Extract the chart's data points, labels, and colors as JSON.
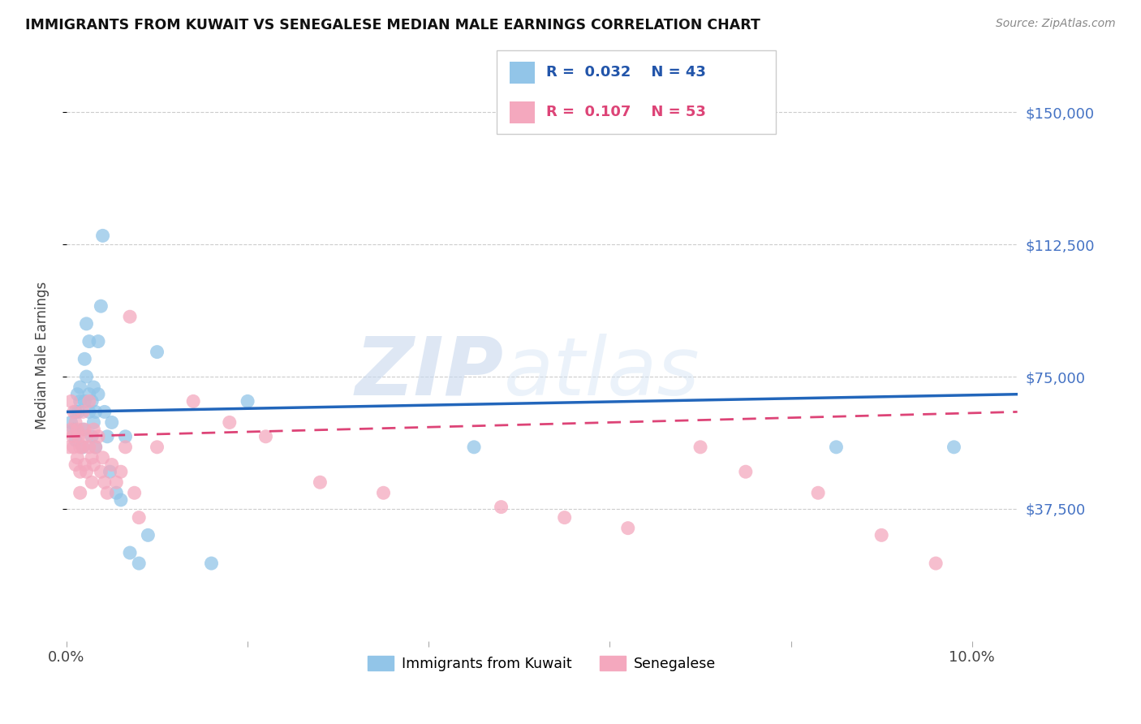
{
  "title": "IMMIGRANTS FROM KUWAIT VS SENEGALESE MEDIAN MALE EARNINGS CORRELATION CHART",
  "source": "Source: ZipAtlas.com",
  "ylabel": "Median Male Earnings",
  "ytick_labels": [
    "$37,500",
    "$75,000",
    "$112,500",
    "$150,000"
  ],
  "ytick_values": [
    37500,
    75000,
    112500,
    150000
  ],
  "ymin": 0,
  "ymax": 162000,
  "xmin": 0.0,
  "xmax": 0.105,
  "legend_label1": "Immigrants from Kuwait",
  "legend_label2": "Senegalese",
  "color_blue": "#92c5e8",
  "color_pink": "#f4a8be",
  "color_blue_line": "#2266bb",
  "color_pink_line": "#dd4477",
  "watermark_zip": "ZIP",
  "watermark_atlas": "atlas",
  "background_color": "#ffffff",
  "kuwait_x": [
    0.0005,
    0.0008,
    0.001,
    0.001,
    0.0012,
    0.0013,
    0.0015,
    0.0015,
    0.0018,
    0.0018,
    0.002,
    0.002,
    0.0022,
    0.0022,
    0.0025,
    0.0025,
    0.0025,
    0.0028,
    0.0028,
    0.003,
    0.003,
    0.0032,
    0.0032,
    0.0035,
    0.0035,
    0.0038,
    0.004,
    0.0042,
    0.0045,
    0.0048,
    0.005,
    0.0055,
    0.006,
    0.0065,
    0.007,
    0.008,
    0.009,
    0.01,
    0.016,
    0.02,
    0.045,
    0.085,
    0.098
  ],
  "kuwait_y": [
    62000,
    60000,
    65000,
    57000,
    70000,
    65000,
    68000,
    72000,
    60000,
    55000,
    80000,
    68000,
    90000,
    75000,
    85000,
    70000,
    65000,
    68000,
    58000,
    72000,
    62000,
    65000,
    55000,
    70000,
    85000,
    95000,
    115000,
    65000,
    58000,
    48000,
    62000,
    42000,
    40000,
    58000,
    25000,
    22000,
    30000,
    82000,
    22000,
    68000,
    55000,
    55000,
    55000
  ],
  "senegal_x": [
    0.0003,
    0.0005,
    0.0005,
    0.0007,
    0.0008,
    0.0008,
    0.001,
    0.001,
    0.0012,
    0.0012,
    0.0013,
    0.0015,
    0.0015,
    0.0015,
    0.0018,
    0.0018,
    0.002,
    0.002,
    0.0022,
    0.0022,
    0.0025,
    0.0025,
    0.0028,
    0.0028,
    0.003,
    0.003,
    0.0032,
    0.0035,
    0.0038,
    0.004,
    0.0042,
    0.0045,
    0.005,
    0.0055,
    0.006,
    0.0065,
    0.007,
    0.0075,
    0.008,
    0.01,
    0.014,
    0.018,
    0.022,
    0.028,
    0.035,
    0.048,
    0.055,
    0.062,
    0.07,
    0.075,
    0.083,
    0.09,
    0.096
  ],
  "senegal_y": [
    55000,
    68000,
    60000,
    58000,
    65000,
    55000,
    62000,
    50000,
    60000,
    52000,
    58000,
    55000,
    48000,
    42000,
    65000,
    55000,
    60000,
    50000,
    58000,
    48000,
    68000,
    55000,
    52000,
    45000,
    60000,
    50000,
    55000,
    58000,
    48000,
    52000,
    45000,
    42000,
    50000,
    45000,
    48000,
    55000,
    92000,
    42000,
    35000,
    55000,
    68000,
    62000,
    58000,
    45000,
    42000,
    38000,
    35000,
    32000,
    55000,
    48000,
    42000,
    30000,
    22000
  ]
}
